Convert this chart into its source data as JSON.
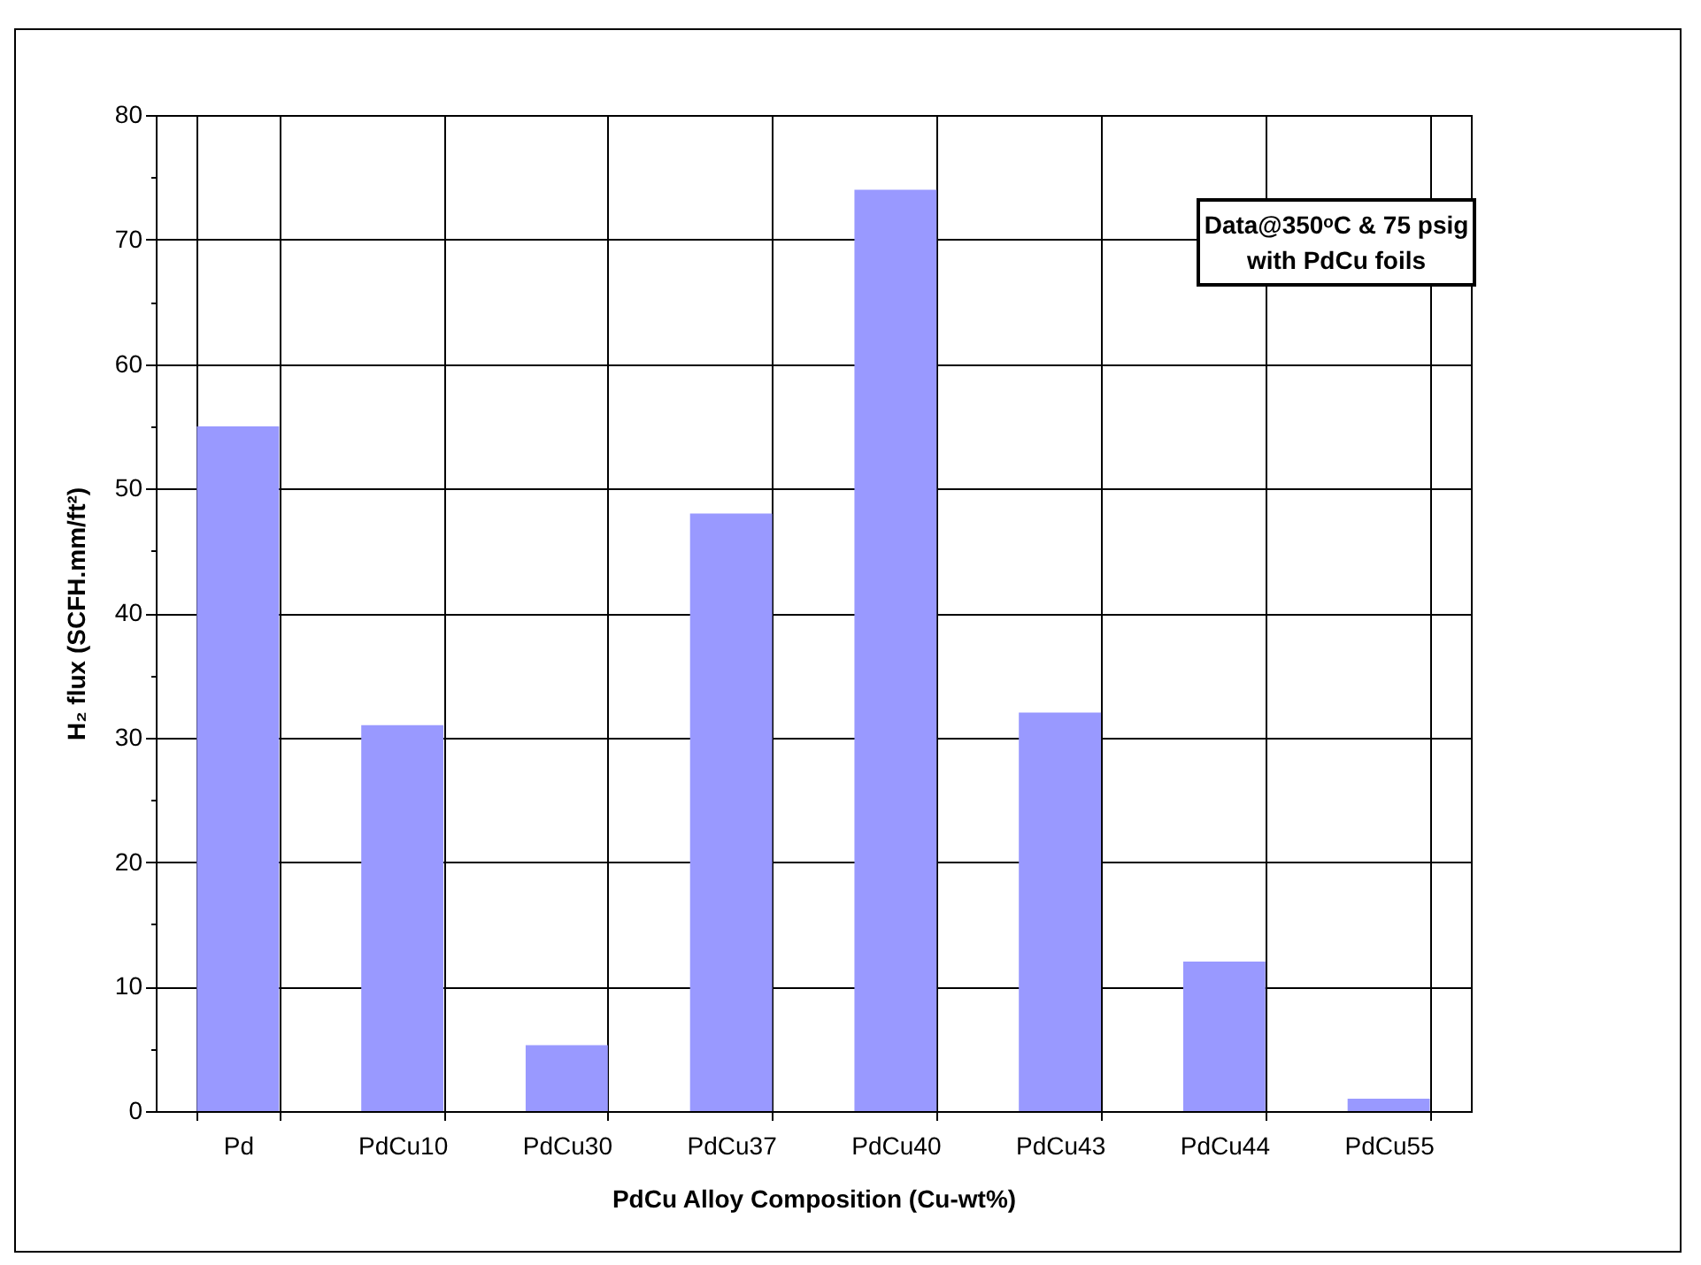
{
  "chart_data": {
    "type": "bar",
    "categories": [
      "Pd",
      "PdCu10",
      "PdCu30",
      "PdCu37",
      "PdCu40",
      "PdCu43",
      "PdCu44",
      "PdCu55"
    ],
    "values": [
      55,
      31,
      5.3,
      48,
      74,
      32,
      12,
      1
    ],
    "color": "#9999ff",
    "xlabel": "PdCu Alloy Composition (Cu-wt%)",
    "ylabel": "H₂ flux (SCFH.mm/ft²)",
    "ylim": [
      0,
      80
    ],
    "yticks": [
      0,
      {
        "value": 5,
        "label": null
      },
      10,
      {
        "value": 15,
        "label": null
      },
      20,
      {
        "value": 25,
        "label": null
      },
      30,
      {
        "value": 35,
        "label": null
      },
      40,
      {
        "value": 45,
        "label": null
      },
      50,
      {
        "value": 55,
        "label": null
      },
      60,
      {
        "value": 65,
        "label": null
      },
      70,
      {
        "value": 75,
        "label": null
      },
      80
    ],
    "grid": true,
    "annotations": [
      "Data@350ᵒC & 75 psig with PdCu foils"
    ]
  }
}
